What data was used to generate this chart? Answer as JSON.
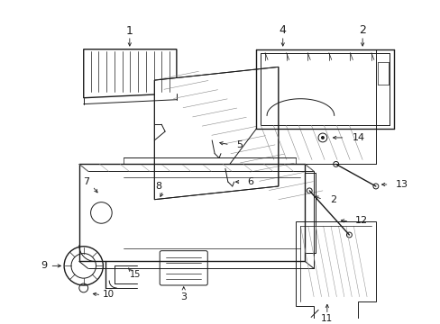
{
  "background_color": "#ffffff",
  "line_color": "#1a1a1a",
  "fig_width": 4.89,
  "fig_height": 3.6,
  "dpi": 100,
  "label_fontsize": 9,
  "small_fontsize": 8
}
